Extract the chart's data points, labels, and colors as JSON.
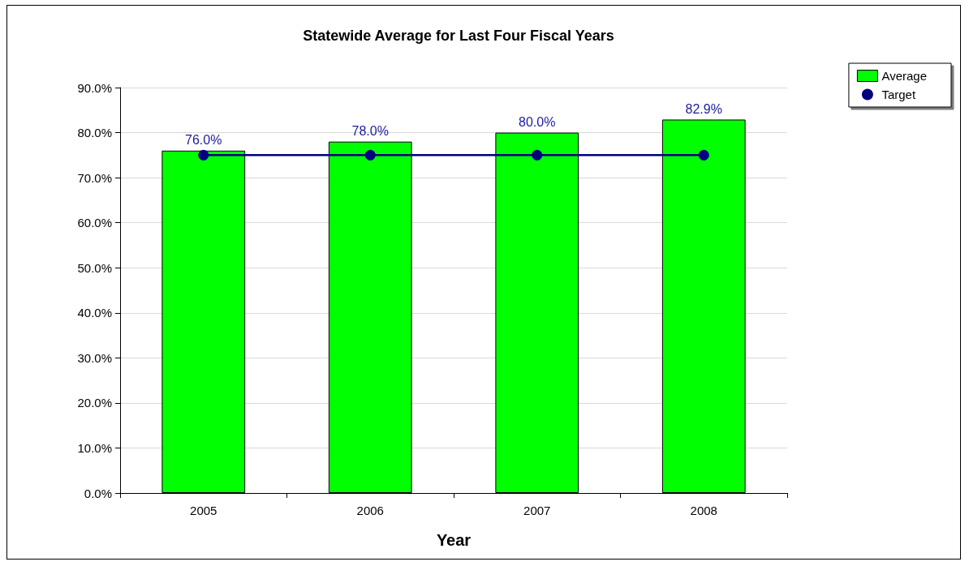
{
  "chart_data": {
    "type": "bar",
    "title": "Statewide Average for Last Four Fiscal Years",
    "xlabel": "Year",
    "categories": [
      "2005",
      "2006",
      "2007",
      "2008"
    ],
    "series": [
      {
        "name": "Average",
        "type": "bar",
        "color": "#00ff00",
        "values": [
          76.0,
          78.0,
          80.0,
          82.9
        ],
        "value_labels": [
          "76.0%",
          "78.0%",
          "80.0%",
          "82.9%"
        ]
      },
      {
        "name": "Target",
        "type": "line",
        "color": "#000080",
        "values": [
          75,
          75,
          75,
          75
        ]
      }
    ],
    "ylim": [
      0,
      90
    ],
    "yticks": [
      {
        "value": 0,
        "label": "0.0%"
      },
      {
        "value": 10,
        "label": "10.0%"
      },
      {
        "value": 20,
        "label": "20.0%"
      },
      {
        "value": 30,
        "label": "30.0%"
      },
      {
        "value": 40,
        "label": "40.0%"
      },
      {
        "value": 50,
        "label": "50.0%"
      },
      {
        "value": 60,
        "label": "60.0%"
      },
      {
        "value": 70,
        "label": "70.0%"
      },
      {
        "value": 80,
        "label": "80.0%"
      },
      {
        "value": 90,
        "label": "90.0%"
      }
    ],
    "grid": "y",
    "legend": "top right",
    "marker": "circle",
    "line_style": "solid"
  }
}
